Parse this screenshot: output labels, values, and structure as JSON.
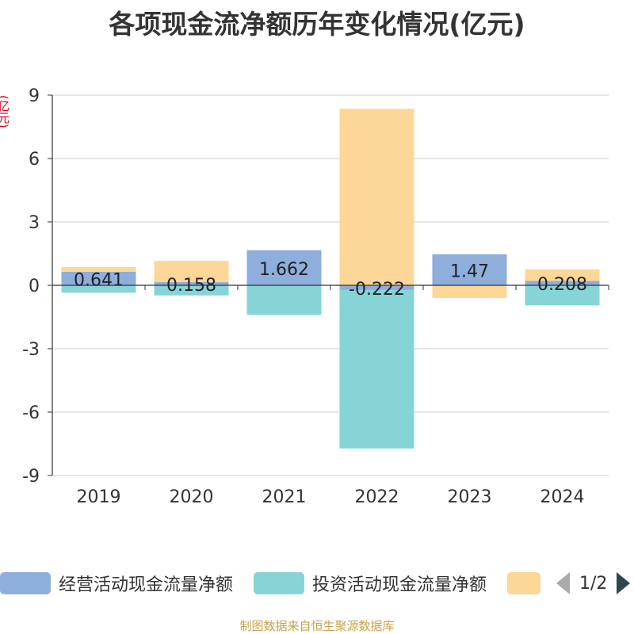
{
  "title": "各项现金流净额历年变化情况(亿元)",
  "unit_label": "(亿元)",
  "footer": "制图数据来自恒生聚源数据库",
  "legend": {
    "items": [
      {
        "label": "经营活动现金流量净额",
        "color": "#8eaedc"
      },
      {
        "label": "投资活动现金流量净额",
        "color": "#87d4d6"
      },
      {
        "label": "",
        "color": "#fdd797"
      }
    ],
    "page": "1/2"
  },
  "chart_data": {
    "type": "bar",
    "stacked": true,
    "categories": [
      "2019",
      "2020",
      "2021",
      "2022",
      "2023",
      "2024"
    ],
    "series": [
      {
        "name": "经营活动现金流量净额",
        "color": "#8eaedc",
        "values": [
          0.641,
          0.158,
          1.662,
          -0.222,
          1.47,
          0.208
        ]
      },
      {
        "name": "投资活动现金流量净额",
        "color": "#87d4d6",
        "values": [
          -0.35,
          -0.48,
          -1.4,
          -7.5,
          0.0,
          -0.95
        ]
      },
      {
        "name": "",
        "color": "#fdd797",
        "values": [
          0.22,
          1.0,
          0.0,
          8.35,
          -0.6,
          0.55
        ]
      }
    ],
    "data_labels": [
      "0.641",
      "0.158",
      "1.662",
      "-0.222",
      "1.47",
      "0.208"
    ],
    "ylim": [
      -9,
      9
    ],
    "yticks": [
      9,
      6,
      3,
      0,
      -3,
      -6,
      -9
    ],
    "grid": true,
    "legend_position": "bottom"
  }
}
